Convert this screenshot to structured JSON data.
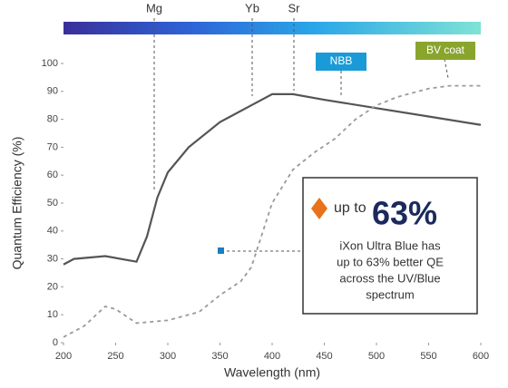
{
  "chart_data": {
    "type": "line",
    "x_label": "Wavelength (nm)",
    "y_label": "Quantum Efficiency (%)",
    "xlim": [
      200,
      600
    ],
    "xticks": [
      200,
      250,
      300,
      350,
      400,
      450,
      500,
      550,
      600
    ],
    "ylim": [
      0,
      100
    ],
    "yticks": [
      0,
      10,
      20,
      30,
      40,
      50,
      60,
      70,
      80,
      90,
      100
    ],
    "series": [
      {
        "color": "#555555",
        "dashed": false,
        "x": [
          200,
          210,
          240,
          270,
          280,
          290,
          300,
          320,
          350,
          360,
          380,
          400,
          420,
          450,
          500,
          550,
          600
        ],
        "values": [
          28,
          30,
          31,
          29,
          38,
          52,
          61,
          70,
          79,
          81,
          85,
          89,
          89,
          87,
          84,
          81,
          78
        ]
      },
      {
        "color": "#9a9a9a",
        "dashed": true,
        "x": [
          200,
          220,
          240,
          250,
          270,
          300,
          330,
          350,
          370,
          380,
          400,
          420,
          440,
          460,
          480,
          500,
          520,
          550,
          570,
          600
        ],
        "values": [
          2,
          6,
          13,
          12,
          7,
          8,
          11,
          17,
          22,
          27,
          50,
          62,
          68,
          73,
          80,
          85,
          88,
          91,
          92,
          92
        ]
      }
    ],
    "annotations": [
      "Mg",
      "Yb",
      "Sr",
      "NBB",
      "BV coat"
    ],
    "callout": {
      "prefix": "up to",
      "value": "63%",
      "text": [
        "iXon Ultra Blue has",
        "up to 63% better QE",
        "across the UV/Blue",
        "spectrum"
      ]
    }
  }
}
